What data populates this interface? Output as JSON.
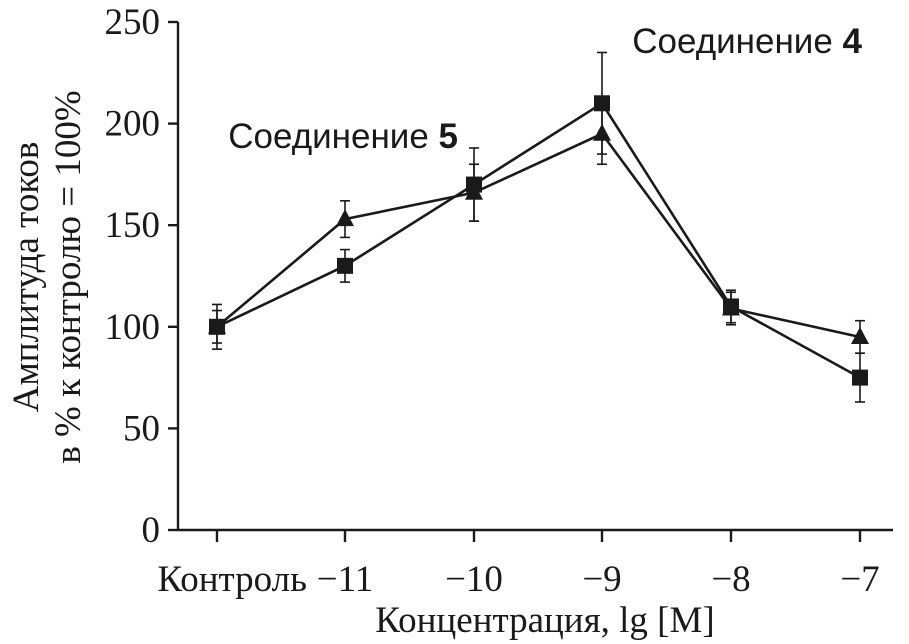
{
  "chart_data": {
    "type": "line",
    "categories": [
      "Контроль",
      "−11",
      "−10",
      "−9",
      "−8",
      "−7"
    ],
    "xlabel": "Концентрация, lg [M]",
    "ylabel_line1": "Амплитуда токов",
    "ylabel_line2": "в % к контролю = 100%",
    "ylim": [
      0,
      250
    ],
    "yticks": [
      0,
      50,
      100,
      150,
      200,
      250
    ],
    "grid": false,
    "series": [
      {
        "name": "Соединение 4",
        "marker": "square",
        "values": [
          100,
          130,
          170,
          210,
          110,
          75
        ],
        "errors": [
          11,
          8,
          18,
          25,
          8,
          12
        ]
      },
      {
        "name": "Соединение 5",
        "marker": "triangle",
        "values": [
          100,
          153,
          166,
          195,
          109,
          95
        ],
        "errors": [
          8,
          9,
          14,
          15,
          8,
          8
        ]
      }
    ],
    "annotations": [
      {
        "prefix": "Соединение ",
        "number": "4",
        "series": "Соединение 4"
      },
      {
        "prefix": "Соединение ",
        "number": "5",
        "series": "Соединение 5"
      }
    ],
    "colors": {
      "ink": "#1a1a1a",
      "background": "#ffffff"
    }
  }
}
